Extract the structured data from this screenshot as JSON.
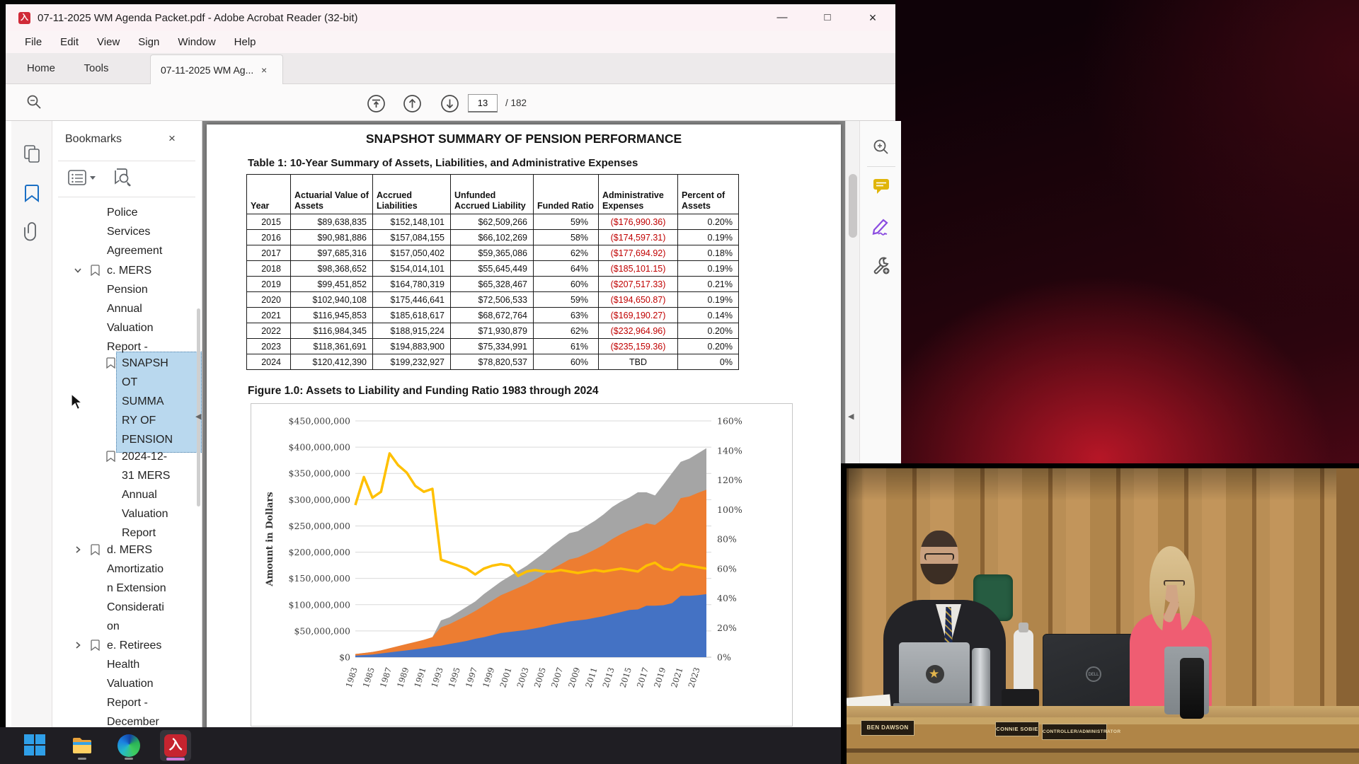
{
  "titlebar": {
    "title": "07-11-2025 WM Agenda Packet.pdf - Adobe Acrobat Reader (32-bit)",
    "pdf_glyph": "入",
    "minimize": "—",
    "maximize": "□",
    "close": "×"
  },
  "menubar": [
    "File",
    "Edit",
    "View",
    "Sign",
    "Window",
    "Help"
  ],
  "tabbar": {
    "home": "Home",
    "tools": "Tools",
    "document_tab": "07-11-2025 WM Ag...",
    "tab_close": "×"
  },
  "toolbar": {
    "page_number": "13",
    "page_total": "/ 182"
  },
  "bookmarks_panel": {
    "title": "Bookmarks",
    "close": "×",
    "items": [
      {
        "lines": [
          "Police",
          "Services",
          "Agreement"
        ],
        "level": 1,
        "icon": false,
        "chevron": "none",
        "selected": false
      },
      {
        "lines": [
          "c. MERS",
          "Pension",
          "Annual",
          "Valuation",
          "Report -"
        ],
        "level": 1,
        "icon": true,
        "chevron": "open",
        "selected": false
      },
      {
        "lines": [
          "SNAPSH",
          "OT",
          "SUMMA",
          "RY OF",
          "PENSION"
        ],
        "level": 2,
        "icon": true,
        "chevron": "none",
        "selected": true
      },
      {
        "lines": [
          "2024-12-",
          "31 MERS",
          "Annual",
          "Valuation",
          "Report"
        ],
        "level": 2,
        "icon": true,
        "chevron": "none",
        "selected": false
      },
      {
        "lines": [
          "d. MERS",
          "Amortizatio",
          "n Extension",
          "Considerati",
          "on"
        ],
        "level": 1,
        "icon": true,
        "chevron": "closed",
        "selected": false
      },
      {
        "lines": [
          "e. Retirees",
          "Health",
          "Valuation",
          "Report -",
          "December"
        ],
        "level": 1,
        "icon": true,
        "chevron": "closed",
        "selected": false
      }
    ]
  },
  "pdf": {
    "title": "SNAPSHOT SUMMARY OF PENSION PERFORMANCE",
    "table_caption": "Table 1: 10-Year Summary of Assets, Liabilities, and Administrative Expenses",
    "table": {
      "headers": [
        "Year",
        "Actuarial Value of Assets",
        "Accrued Liabilities",
        "Unfunded Accrued Liability",
        "Funded Ratio",
        "Administrative Expenses",
        "Percent of Assets"
      ],
      "rows": [
        [
          "2015",
          "$89,638,835",
          "$152,148,101",
          "$62,509,266",
          "59%",
          "($176,990.36)",
          "0.20%"
        ],
        [
          "2016",
          "$90,981,886",
          "$157,084,155",
          "$66,102,269",
          "58%",
          "($174,597.31)",
          "0.19%"
        ],
        [
          "2017",
          "$97,685,316",
          "$157,050,402",
          "$59,365,086",
          "62%",
          "($177,694.92)",
          "0.18%"
        ],
        [
          "2018",
          "$98,368,652",
          "$154,014,101",
          "$55,645,449",
          "64%",
          "($185,101.15)",
          "0.19%"
        ],
        [
          "2019",
          "$99,451,852",
          "$164,780,319",
          "$65,328,467",
          "60%",
          "($207,517.33)",
          "0.21%"
        ],
        [
          "2020",
          "$102,940,108",
          "$175,446,641",
          "$72,506,533",
          "59%",
          "($194,650.87)",
          "0.19%"
        ],
        [
          "2021",
          "$116,945,853",
          "$185,618,617",
          "$68,672,764",
          "63%",
          "($169,190.27)",
          "0.14%"
        ],
        [
          "2022",
          "$116,984,345",
          "$188,915,224",
          "$71,930,879",
          "62%",
          "($232,964.96)",
          "0.20%"
        ],
        [
          "2023",
          "$118,361,691",
          "$194,883,900",
          "$75,334,991",
          "61%",
          "($235,159.36)",
          "0.20%"
        ],
        [
          "2024",
          "$120,412,390",
          "$199,232,927",
          "$78,820,537",
          "60%",
          "TBD",
          "0%"
        ]
      ]
    },
    "figure_caption": "Figure 1.0: Assets to Liability and Funding Ratio 1983 through 2024"
  },
  "chart_data": {
    "type": "area",
    "title": "Figure 1.0: Assets to Liability and Funding Ratio 1983 through 2024",
    "ylabel": "Amount in Dollars",
    "y_left_labels": [
      "$450,000,000",
      "$400,000,000",
      "$350,000,000",
      "$300,000,000",
      "$250,000,000",
      "$200,000,000",
      "$150,000,000",
      "$100,000,000",
      "$50,000,000",
      "$0"
    ],
    "y_right_labels": [
      "160%",
      "140%",
      "120%",
      "100%",
      "80%",
      "60%",
      "40%",
      "20%",
      "0%"
    ],
    "x_labels": [
      "1983",
      "1985",
      "1987",
      "1989",
      "1991",
      "1993",
      "1995",
      "1997",
      "1999",
      "2001",
      "2003",
      "2005",
      "2007",
      "2009",
      "2011",
      "2013",
      "2015",
      "2017",
      "2019",
      "2021",
      "2023"
    ],
    "ylim_left_millions": [
      0,
      450
    ],
    "ylim_right_percent": [
      0,
      160
    ],
    "years_start": 1983,
    "years_end": 2024,
    "series": [
      {
        "name": "Actuarial Value of Assets",
        "color": "#4472c4",
        "values_millions": [
          3,
          4,
          5,
          7,
          9,
          11,
          13,
          15,
          17,
          20,
          22,
          25,
          28,
          31,
          35,
          38,
          42,
          46,
          48,
          50,
          52,
          55,
          58,
          62,
          65,
          68,
          70,
          72,
          75,
          78,
          82,
          86,
          90,
          91,
          98,
          98,
          99,
          103,
          117,
          117,
          118,
          120
        ]
      },
      {
        "name": "Accrued Liabilities",
        "color": "#ed7d31",
        "values_millions": [
          3,
          4,
          5,
          6,
          8,
          10,
          12,
          14,
          16,
          18,
          35,
          38,
          43,
          48,
          53,
          60,
          66,
          72,
          77,
          82,
          87,
          93,
          99,
          106,
          112,
          118,
          120,
          125,
          130,
          136,
          143,
          148,
          152,
          157,
          157,
          154,
          165,
          175,
          186,
          189,
          195,
          199
        ]
      },
      {
        "name": "Unfunded Accrued Liability",
        "color": "#a5a5a5",
        "values_millions": [
          0,
          0,
          0,
          0,
          0,
          0,
          0,
          0,
          0,
          0,
          13,
          13,
          15,
          17,
          18,
          22,
          24,
          26,
          29,
          32,
          35,
          38,
          41,
          44,
          47,
          50,
          50,
          53,
          55,
          58,
          61,
          62,
          62,
          66,
          59,
          56,
          65,
          73,
          69,
          72,
          75,
          79
        ]
      }
    ],
    "line": {
      "name": "Funded Ratio",
      "color": "#ffc000",
      "values_percent": [
        103,
        122,
        108,
        112,
        138,
        130,
        125,
        116,
        112,
        114,
        66,
        64,
        62,
        60,
        56,
        60,
        62,
        63,
        62,
        55,
        58,
        59,
        58,
        58,
        59,
        58,
        57,
        58,
        59,
        58,
        59,
        60,
        59,
        58,
        62,
        64,
        60,
        59,
        63,
        62,
        61,
        60
      ]
    }
  },
  "video": {
    "nameplates": [
      "BEN DAWSON",
      "CONNIE SOBIE",
      "CONTROLLER/ADMINISTRATOR"
    ]
  }
}
